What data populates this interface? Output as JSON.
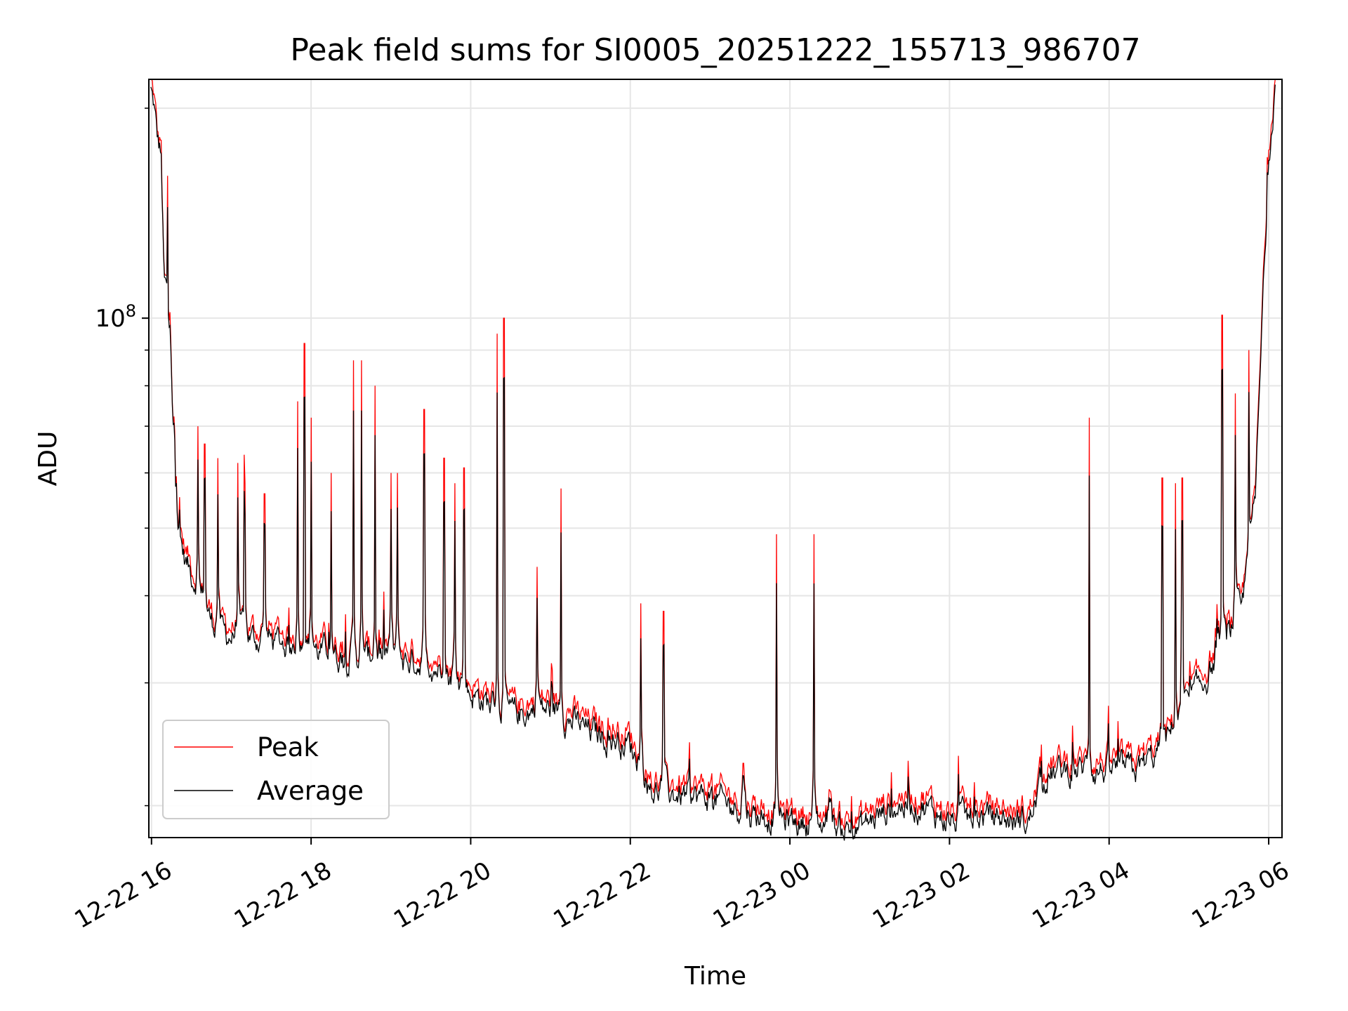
{
  "chart_data": {
    "type": "line",
    "title": "Peak field sums for SI0005_20251222_155713_986707",
    "xlabel": "Time",
    "ylabel": "ADU",
    "y_scale": "log",
    "ylim": [
      18000000,
      220000000
    ],
    "y_major_tick": {
      "value": 100000000,
      "label_base": "10",
      "label_exp": "8"
    },
    "y_minor_ticks": [
      20000000,
      30000000,
      40000000,
      50000000,
      60000000,
      70000000,
      80000000,
      90000000,
      200000000
    ],
    "xlim": [
      "2025-12-22 15:58",
      "2025-12-23 06:10"
    ],
    "x_ticks": [
      {
        "t": "2025-12-22 16:00",
        "label": "12-22 16"
      },
      {
        "t": "2025-12-22 18:00",
        "label": "12-22 18"
      },
      {
        "t": "2025-12-22 20:00",
        "label": "12-22 20"
      },
      {
        "t": "2025-12-22 22:00",
        "label": "12-22 22"
      },
      {
        "t": "2025-12-23 00:00",
        "label": "12-23 00"
      },
      {
        "t": "2025-12-23 02:00",
        "label": "12-23 02"
      },
      {
        "t": "2025-12-23 04:00",
        "label": "12-23 04"
      },
      {
        "t": "2025-12-23 06:00",
        "label": "12-23 06"
      }
    ],
    "grid": true,
    "legend_position": "lower-left",
    "series": [
      {
        "name": "Peak",
        "color": "#ff0000"
      },
      {
        "name": "Average",
        "color": "#000000"
      }
    ],
    "baseline": {
      "x": [
        "2025-12-22 15:58",
        "2025-12-22 16:02",
        "2025-12-22 16:06",
        "2025-12-22 16:10",
        "2025-12-22 16:15",
        "2025-12-22 16:20",
        "2025-12-22 16:25",
        "2025-12-22 16:30",
        "2025-12-22 16:40",
        "2025-12-22 16:50",
        "2025-12-22 17:00",
        "2025-12-22 17:30",
        "2025-12-22 18:00",
        "2025-12-22 18:30",
        "2025-12-22 19:00",
        "2025-12-22 19:30",
        "2025-12-22 20:00",
        "2025-12-22 20:30",
        "2025-12-22 21:00",
        "2025-12-22 21:30",
        "2025-12-22 22:00",
        "2025-12-22 22:15",
        "2025-12-22 22:30",
        "2025-12-22 23:00",
        "2025-12-22 23:30",
        "2025-12-23 00:00",
        "2025-12-23 00:30",
        "2025-12-23 00:50",
        "2025-12-23 01:10",
        "2025-12-23 01:20",
        "2025-12-23 01:40",
        "2025-12-23 02:00",
        "2025-12-23 02:30",
        "2025-12-23 02:50",
        "2025-12-23 03:00",
        "2025-12-23 03:10",
        "2025-12-23 03:30",
        "2025-12-23 04:00",
        "2025-12-23 04:20",
        "2025-12-23 04:40",
        "2025-12-23 05:00",
        "2025-12-23 05:15",
        "2025-12-23 05:30",
        "2025-12-23 05:40",
        "2025-12-23 05:50",
        "2025-12-23 06:00",
        "2025-12-23 06:05"
      ],
      "y": [
        220000000,
        200000000,
        165000000,
        110000000,
        75000000,
        50000000,
        45000000,
        43000000,
        38000000,
        35500000,
        35000000,
        34500000,
        33500000,
        32500000,
        32500000,
        32000000,
        29000000,
        27000000,
        27500000,
        25500000,
        24500000,
        21000000,
        20800000,
        20500000,
        19500000,
        19000000,
        18800000,
        18500000,
        19500000,
        20000000,
        20000000,
        19000000,
        19300000,
        19000000,
        19000000,
        22000000,
        22500000,
        22500000,
        22500000,
        24000000,
        28000000,
        31000000,
        35000000,
        38000000,
        55000000,
        170000000,
        220000000
      ]
    },
    "peak_spikes": [
      [
        "2025-12-22 16:07",
        180000000
      ],
      [
        "2025-12-22 16:12",
        160000000
      ],
      [
        "2025-12-22 16:14",
        102000000
      ],
      [
        "2025-12-22 16:18",
        58000000
      ],
      [
        "2025-12-22 16:35",
        70000000
      ],
      [
        "2025-12-22 16:40",
        66000000
      ],
      [
        "2025-12-22 16:50",
        63000000
      ],
      [
        "2025-12-22 17:05",
        62000000
      ],
      [
        "2025-12-22 17:10",
        58000000
      ],
      [
        "2025-12-22 17:25",
        56000000
      ],
      [
        "2025-12-22 17:50",
        76000000
      ],
      [
        "2025-12-22 17:55",
        92000000
      ],
      [
        "2025-12-22 18:00",
        72000000
      ],
      [
        "2025-12-22 18:15",
        60000000
      ],
      [
        "2025-12-22 18:32",
        87000000
      ],
      [
        "2025-12-22 18:38",
        87000000
      ],
      [
        "2025-12-22 18:48",
        80000000
      ],
      [
        "2025-12-22 19:00",
        60000000
      ],
      [
        "2025-12-22 19:05",
        60000000
      ],
      [
        "2025-12-22 19:25",
        74000000
      ],
      [
        "2025-12-22 19:40",
        63000000
      ],
      [
        "2025-12-22 19:48",
        58000000
      ],
      [
        "2025-12-22 19:55",
        61000000
      ],
      [
        "2025-12-22 20:20",
        95000000
      ],
      [
        "2025-12-22 20:25",
        100000000
      ],
      [
        "2025-12-22 20:50",
        44000000
      ],
      [
        "2025-12-22 21:08",
        57000000
      ],
      [
        "2025-12-22 22:08",
        39000000
      ],
      [
        "2025-12-22 22:25",
        38000000
      ],
      [
        "2025-12-22 23:25",
        23000000
      ],
      [
        "2025-12-22 23:50",
        49000000
      ],
      [
        "2025-12-23 00:18",
        49000000
      ],
      [
        "2025-12-23 00:30",
        21000000
      ],
      [
        "2025-12-23 03:45",
        72000000
      ],
      [
        "2025-12-23 04:40",
        59000000
      ],
      [
        "2025-12-23 04:50",
        58000000
      ],
      [
        "2025-12-23 04:55",
        59000000
      ],
      [
        "2025-12-23 05:25",
        101000000
      ],
      [
        "2025-12-23 05:35",
        78000000
      ],
      [
        "2025-12-23 05:45",
        90000000
      ]
    ]
  }
}
